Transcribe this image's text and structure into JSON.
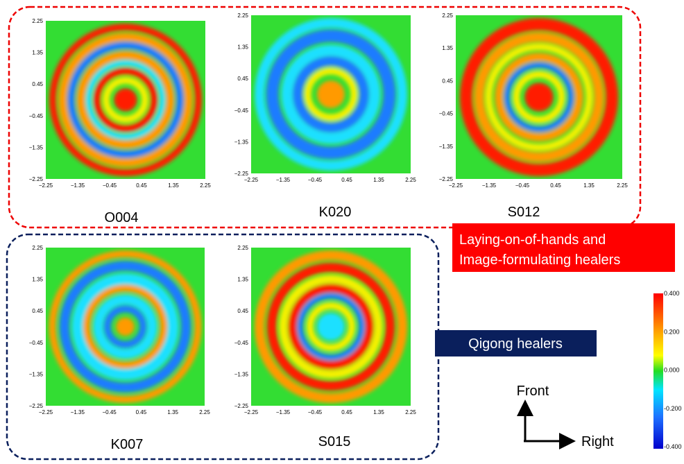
{
  "panels": [
    {
      "label": "O004"
    },
    {
      "label": "K020"
    },
    {
      "label": "S012"
    },
    {
      "label": "K007"
    },
    {
      "label": "S015"
    }
  ],
  "axis_ticks": [
    "−2.25",
    "−1.35",
    "−0.45",
    "0.45",
    "1.35",
    "2.25"
  ],
  "groups": [
    {
      "lines": [
        "Laying-on-of-hands and",
        "Image-formulating healers"
      ]
    },
    {
      "lines": [
        "Qigong healers"
      ]
    }
  ],
  "colorbar": {
    "ticks": [
      "0.400",
      "0.200",
      "0.000",
      "-0.200",
      "-0.400"
    ]
  },
  "directions": {
    "front": "Front",
    "right": "Right"
  }
}
